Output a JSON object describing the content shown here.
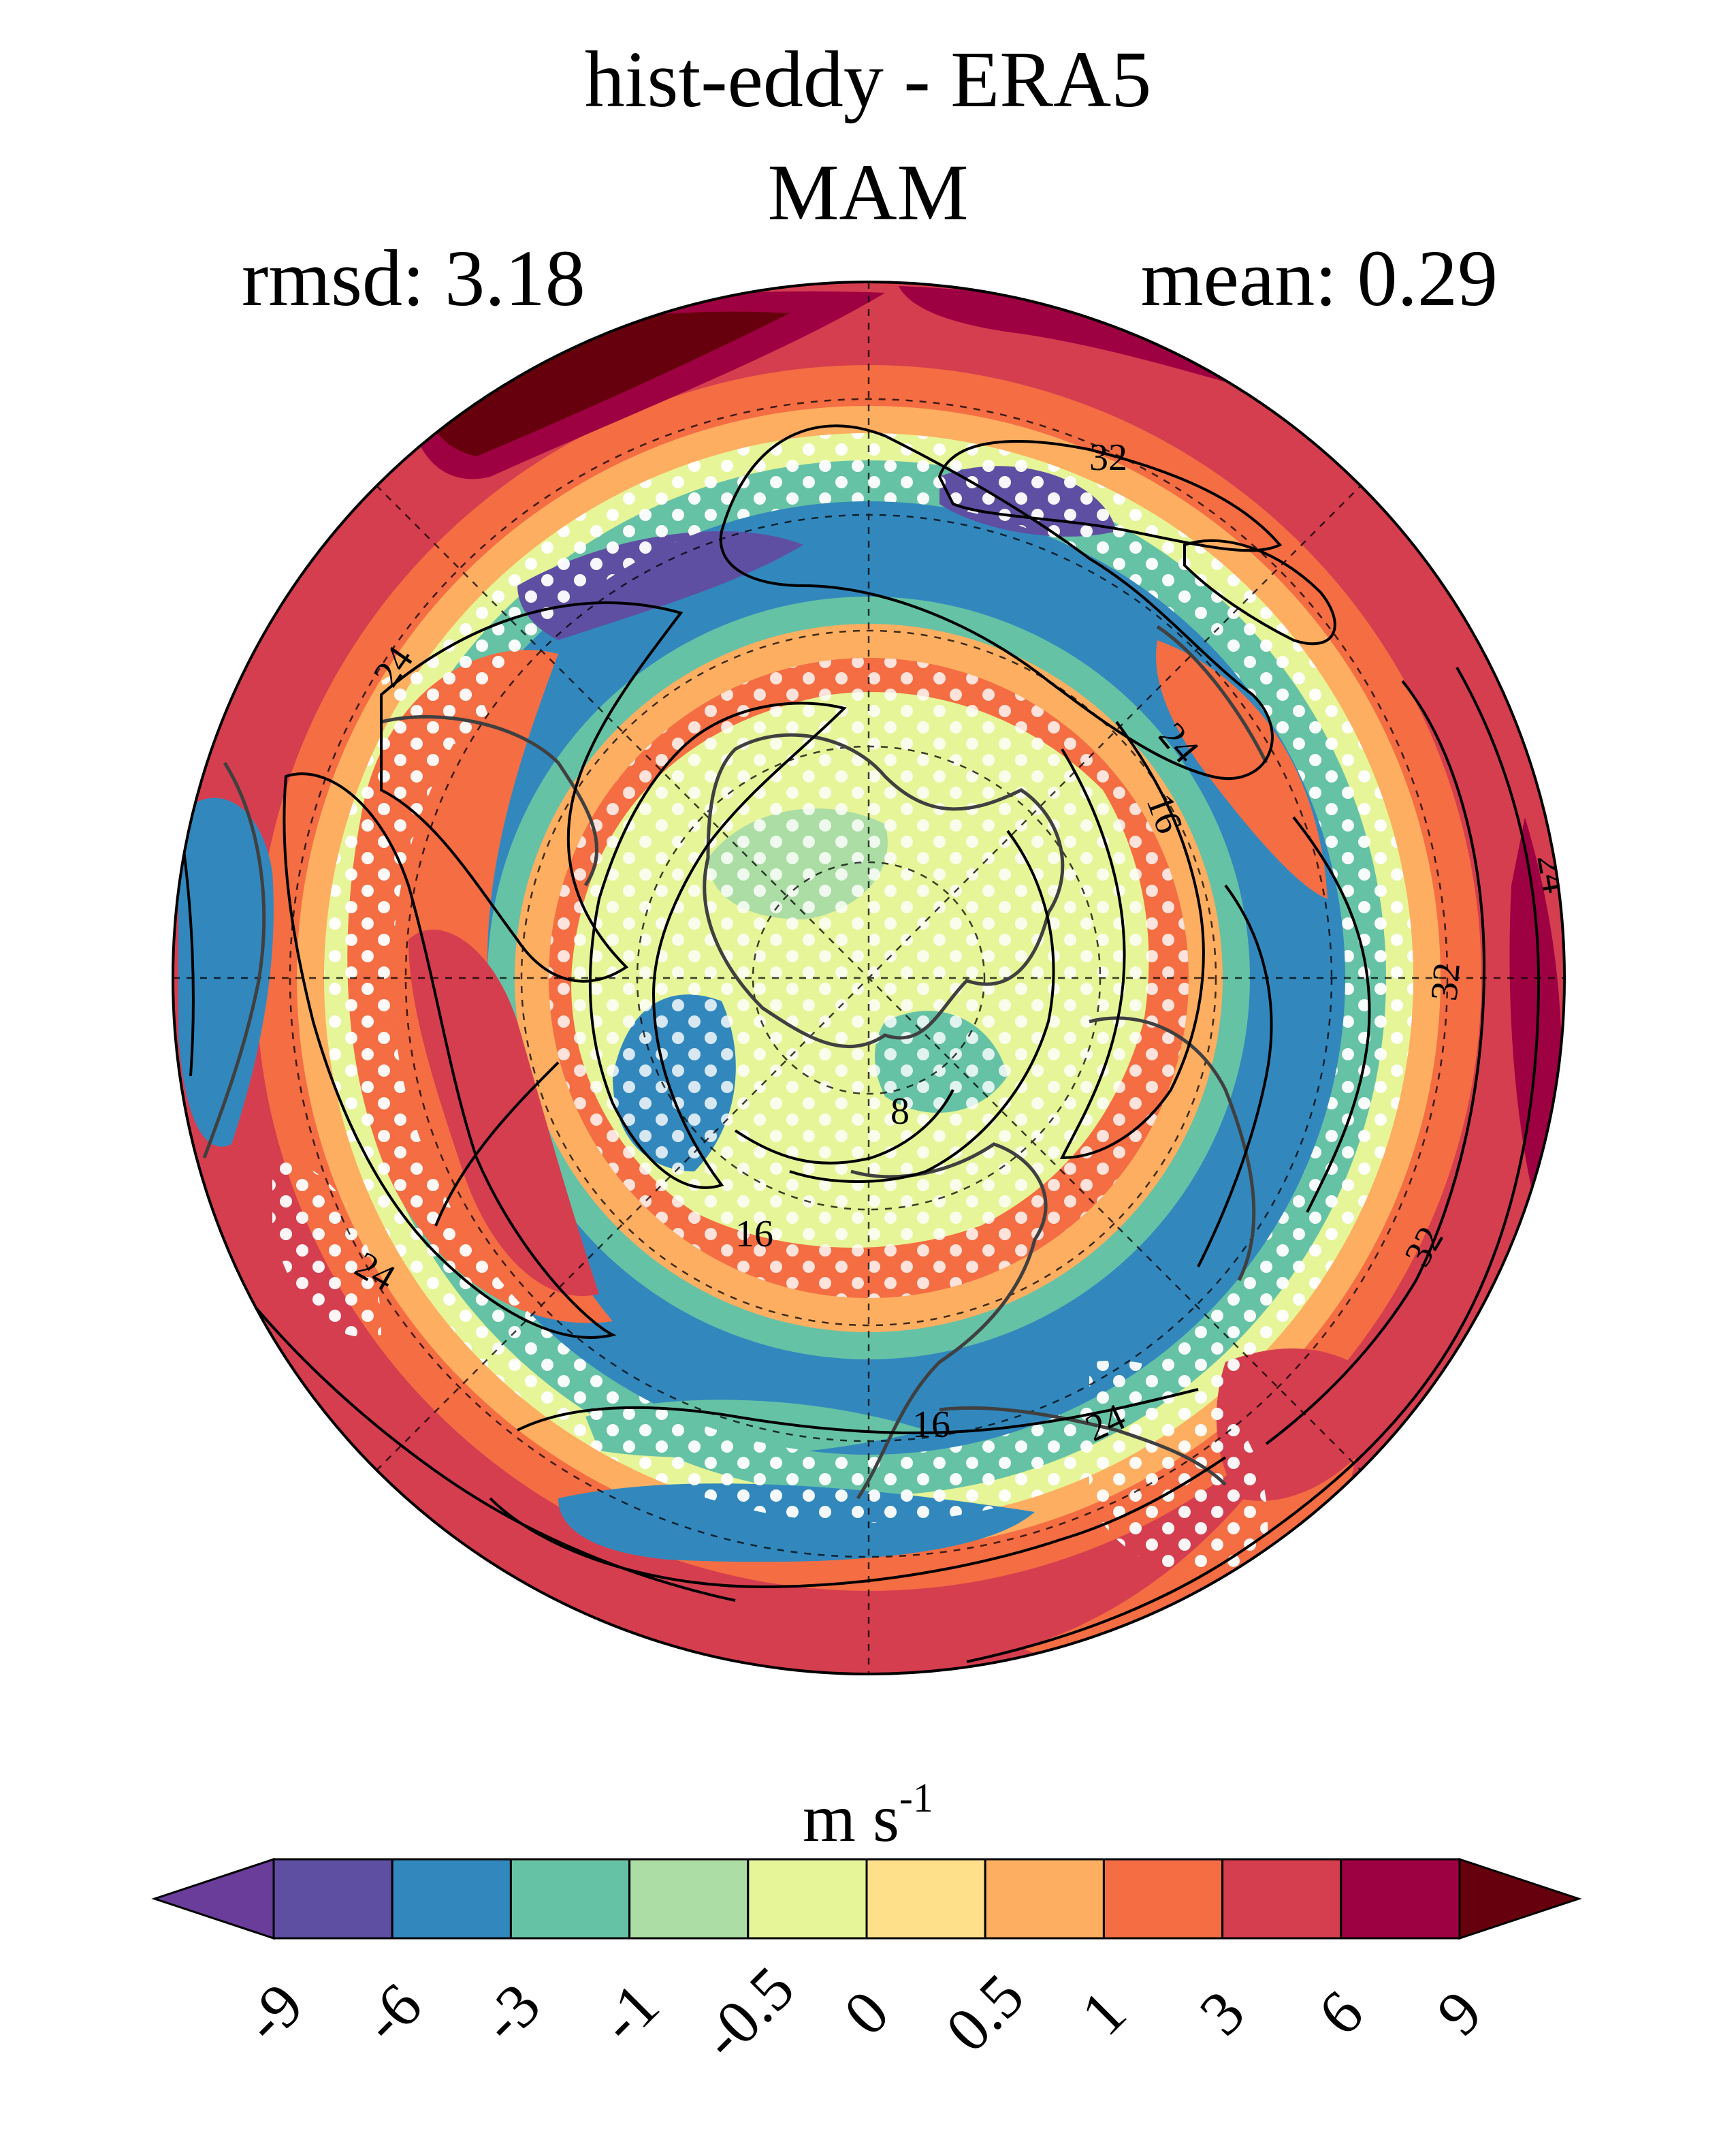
{
  "title": {
    "line1": "hist-eddy - ERA5",
    "line2": "MAM",
    "rmsd": "rmsd: 3.18",
    "mean": "mean: 0.29"
  },
  "colorbar": {
    "units_base": "m s",
    "units_exp": "-1",
    "levels": [
      "-9",
      "-6",
      "-3",
      "-1",
      "-0.5",
      "0",
      "0.5",
      "1",
      "3",
      "6",
      "9"
    ],
    "colors": [
      "#5e4fa2",
      "#3288bd",
      "#66c2a5",
      "#abdda4",
      "#e6f598",
      "#fee08b",
      "#fdae61",
      "#f46d43",
      "#d53e4f",
      "#9e0142"
    ],
    "under_color": "#6a3d9a",
    "over_color": "#67000d"
  },
  "map": {
    "projection": "north-polar-stereographic",
    "contour_labels": [
      "32",
      "24",
      "24",
      "16",
      "24",
      "32",
      "8",
      "16",
      "24",
      "16",
      "24",
      "32"
    ],
    "stippling": "white dots mark regions of significance",
    "field_colors": {
      "strong_neg": "#5e4fa2",
      "neg": "#3288bd",
      "mod_neg": "#66c2a5",
      "weak_neg": "#abdda4",
      "near_zero": "#e6f598",
      "weak_pos": "#fee08b",
      "mod_pos": "#fdae61",
      "pos": "#f46d43",
      "strong_pos": "#d53e4f",
      "very_strong": "#9e0142",
      "extreme": "#67000d"
    }
  }
}
